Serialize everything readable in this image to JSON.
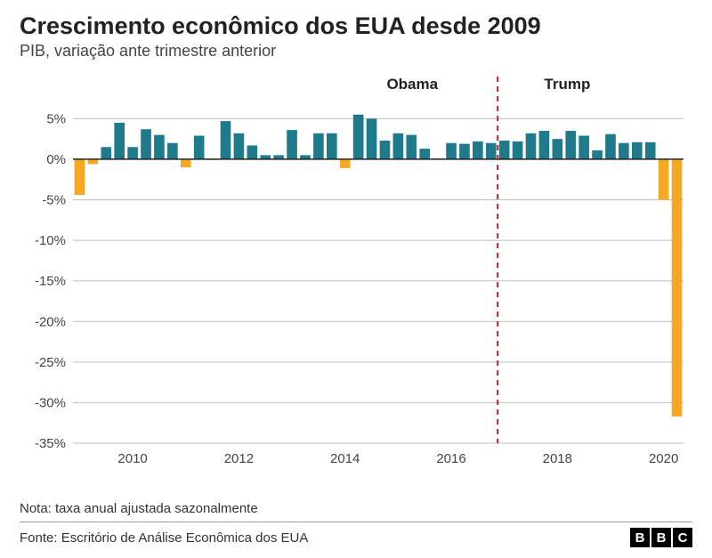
{
  "title": "Crescimento econômico dos EUA desde 2009",
  "subtitle": "PIB, variação ante trimestre anterior",
  "note": "Nota: taxa anual ajustada sazonalmente",
  "source": "Fonte: Escritório de Análise Econômica dos EUA",
  "logo": {
    "b1": "B",
    "b2": "B",
    "c": "C"
  },
  "chart": {
    "type": "bar",
    "colors": {
      "positive": "#1f7a8c",
      "negative": "#f6a823",
      "zero_line": "#222222",
      "gridline": "#bfbfbf",
      "divider_line": "#b22222",
      "background": "#ffffff",
      "axis_text": "#444444"
    },
    "ylim": [
      -35,
      8
    ],
    "yticks": [
      5,
      0,
      -5,
      -10,
      -15,
      -20,
      -25,
      -30,
      -35
    ],
    "ytick_labels": [
      "5%",
      "0%",
      "-5%",
      "-10%",
      "-15%",
      "-20%",
      "-25%",
      "-30%",
      "-35%"
    ],
    "xticks_at_index": [
      4,
      12,
      20,
      28,
      36,
      44
    ],
    "xtick_labels": [
      "2010",
      "2012",
      "2014",
      "2016",
      "2018",
      "2020"
    ],
    "annotations": [
      {
        "label": "Obama",
        "x_index": 27,
        "anchor": "end"
      },
      {
        "label": "Trump",
        "x_index": 35,
        "anchor": "start"
      }
    ],
    "divider_x_index": 32,
    "bar_gap_ratio": 0.22,
    "axis_fontsize": 15,
    "annotation_fontsize": 17,
    "values": [
      -4.4,
      -0.6,
      1.5,
      4.5,
      1.5,
      3.7,
      3.0,
      2.0,
      -1.0,
      2.9,
      -0.1,
      4.7,
      3.2,
      1.7,
      0.5,
      0.5,
      3.6,
      0.5,
      3.2,
      3.2,
      -1.1,
      5.5,
      5.0,
      2.3,
      3.2,
      3.0,
      1.3,
      0.1,
      2.0,
      1.9,
      2.2,
      2.0,
      2.3,
      2.2,
      3.2,
      3.5,
      2.5,
      3.5,
      2.9,
      1.1,
      3.1,
      2.0,
      2.1,
      2.1,
      -5.0,
      -31.7
    ]
  }
}
